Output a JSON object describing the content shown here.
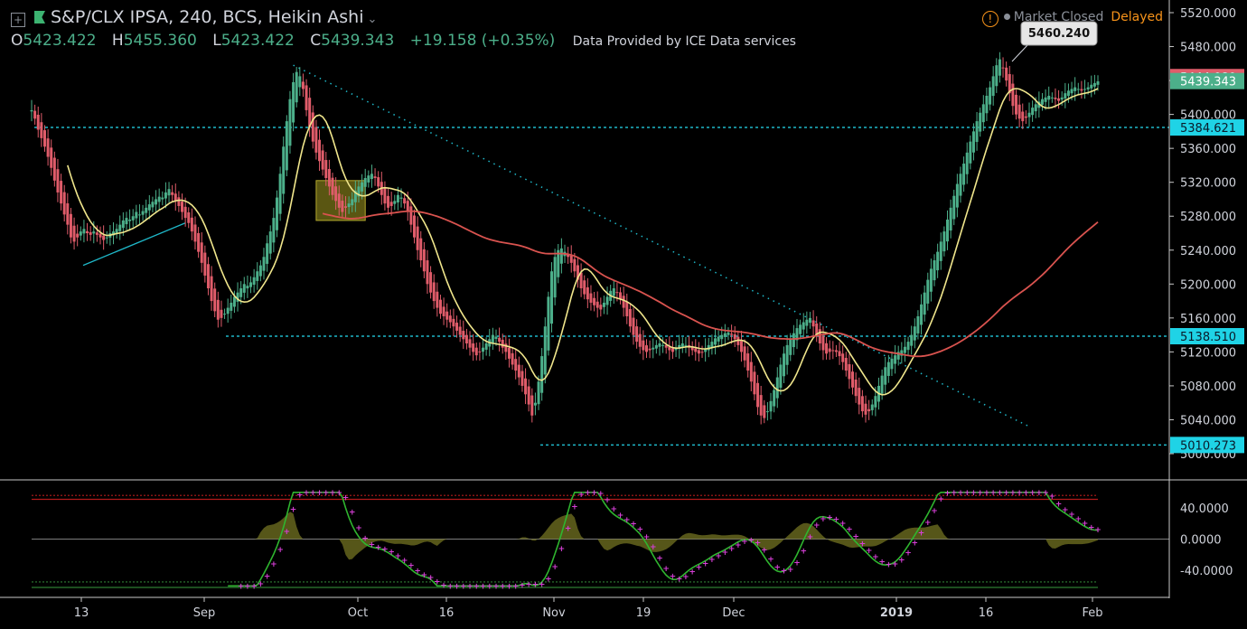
{
  "header": {
    "symbol_title": "S&P/CLX IPSA, 240, BCS, Heikin Ashi",
    "open_label": "O",
    "open": "5423.422",
    "high_label": "H",
    "high": "5455.360",
    "low_label": "L",
    "low": "5423.422",
    "close_label": "C",
    "close": "5439.343",
    "change": "+19.158 (+0.35%)",
    "data_source": "Data Provided by ICE Data services",
    "market_status": "Market Closed",
    "delay_status": "Delayed"
  },
  "colors": {
    "background": "#000000",
    "candle_up": "#4caf8a",
    "candle_down": "#e05c6a",
    "ma_fast": "#f0e68c",
    "ma_slow": "#d9534f",
    "level_line": "#1fb8c9",
    "trendline": "#1fb8c9",
    "osc_main": "#2fb52f",
    "osc_signal": "#d63fd6",
    "osc_histogram": "#6b6b1f",
    "warning": "#f7931a"
  },
  "chart_data": [
    {
      "type": "candlestick",
      "title": "S&P/CLX IPSA, 240, BCS, Heikin Ashi",
      "x_tick_labels": [
        "13",
        "Sep",
        "Oct",
        "16",
        "Nov",
        "19",
        "Dec",
        "2019",
        "16",
        "Feb"
      ],
      "y_tick_labels": [
        "5520.000",
        "5480.000",
        "5440.000",
        "5400.000",
        "5360.000",
        "5320.000",
        "5280.000",
        "5240.000",
        "5200.000",
        "5160.000",
        "5120.000",
        "5080.000",
        "5040.000",
        "5000.000"
      ],
      "ylim": [
        4992,
        5525
      ],
      "price_labels": [
        {
          "text": "5444.080",
          "value": 5444.08,
          "kind": "high"
        },
        {
          "text": "5439.343",
          "value": 5439.343,
          "kind": "last"
        },
        {
          "text": "5384.621",
          "value": 5384.621,
          "kind": "level"
        },
        {
          "text": "5138.510",
          "value": 5138.51,
          "kind": "level"
        },
        {
          "text": "5010.273",
          "value": 5010.273,
          "kind": "level"
        }
      ],
      "horizontal_levels": [
        5384.621,
        5138.51,
        5010.273
      ],
      "callout": {
        "text": "5460.240",
        "value": 5460.24
      },
      "trendline": {
        "from": {
          "bar": 80,
          "value": 5458
        },
        "to": {
          "bar": 305,
          "value": 5032
        }
      },
      "highlight_box": {
        "from_bar": 87,
        "to_bar": 102,
        "low": 5275,
        "high": 5322
      },
      "closes": [
        5405,
        5395,
        5382,
        5372,
        5362,
        5350,
        5337,
        5322,
        5308,
        5295,
        5282,
        5270,
        5255,
        5250,
        5255,
        5262,
        5265,
        5260,
        5258,
        5262,
        5258,
        5255,
        5252,
        5255,
        5260,
        5262,
        5265,
        5270,
        5275,
        5278,
        5276,
        5280,
        5285,
        5282,
        5286,
        5290,
        5294,
        5297,
        5300,
        5303,
        5302,
        5308,
        5312,
        5305,
        5298,
        5292,
        5285,
        5278,
        5272,
        5262,
        5250,
        5238,
        5225,
        5210,
        5195,
        5180,
        5168,
        5158,
        5160,
        5165,
        5172,
        5178,
        5185,
        5190,
        5195,
        5200,
        5198,
        5202,
        5208,
        5215,
        5222,
        5232,
        5248,
        5262,
        5278,
        5302,
        5330,
        5362,
        5392,
        5418,
        5438,
        5450,
        5445,
        5430,
        5405,
        5385,
        5368,
        5355,
        5345,
        5335,
        5325,
        5315,
        5305,
        5298,
        5290,
        5285,
        5290,
        5295,
        5300,
        5310,
        5315,
        5320,
        5325,
        5328,
        5330,
        5325,
        5315,
        5305,
        5295,
        5290,
        5292,
        5298,
        5305,
        5302,
        5295,
        5285,
        5270,
        5255,
        5240,
        5228,
        5215,
        5200,
        5190,
        5180,
        5172,
        5165,
        5162,
        5158,
        5155,
        5150,
        5145,
        5140,
        5135,
        5130,
        5125,
        5120,
        5116,
        5120,
        5125,
        5130,
        5135,
        5140,
        5138,
        5132,
        5125,
        5120,
        5112,
        5105,
        5098,
        5090,
        5080,
        5070,
        5058,
        5045,
        5060,
        5085,
        5115,
        5150,
        5185,
        5215,
        5232,
        5240,
        5242,
        5238,
        5232,
        5225,
        5215,
        5205,
        5195,
        5188,
        5182,
        5178,
        5175,
        5172,
        5170,
        5178,
        5185,
        5192,
        5195,
        5190,
        5182,
        5172,
        5162,
        5150,
        5140,
        5132,
        5126,
        5122,
        5120,
        5122,
        5125,
        5128,
        5130,
        5128,
        5125,
        5122,
        5120,
        5125,
        5128,
        5130,
        5128,
        5125,
        5122,
        5120,
        5118,
        5120,
        5124,
        5128,
        5132,
        5136,
        5138,
        5140,
        5142,
        5143,
        5140,
        5135,
        5128,
        5120,
        5110,
        5098,
        5085,
        5070,
        5055,
        5045,
        5042,
        5050,
        5062,
        5075,
        5090,
        5105,
        5118,
        5128,
        5135,
        5142,
        5148,
        5152,
        5155,
        5158,
        5160,
        5150,
        5140,
        5130,
        5122,
        5118,
        5120,
        5122,
        5120,
        5115,
        5108,
        5098,
        5088,
        5078,
        5068,
        5058,
        5050,
        5046,
        5050,
        5058,
        5068,
        5080,
        5092,
        5102,
        5108,
        5112,
        5116,
        5120,
        5122,
        5126,
        5132,
        5140,
        5150,
        5162,
        5176,
        5190,
        5205,
        5218,
        5228,
        5238,
        5250,
        5262,
        5276,
        5290,
        5304,
        5318,
        5330,
        5342,
        5355,
        5368,
        5380,
        5392,
        5402,
        5412,
        5422,
        5432,
        5445,
        5458,
        5465,
        5455,
        5440,
        5425,
        5410,
        5400,
        5395,
        5392,
        5396,
        5402,
        5408,
        5412,
        5415,
        5418,
        5420,
        5422,
        5420,
        5418,
        5416,
        5420,
        5425,
        5428,
        5430,
        5432,
        5430,
        5428,
        5430,
        5432,
        5435,
        5437,
        5439
      ]
    },
    {
      "type": "line",
      "y_tick_labels": [
        "40.0000",
        "0.0000",
        "-40.0000"
      ],
      "ylim": [
        -64,
        64
      ],
      "reference_lines": [
        56,
        51,
        -55,
        -62
      ]
    }
  ]
}
